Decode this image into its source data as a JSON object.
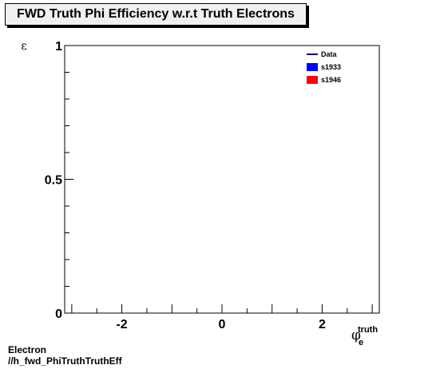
{
  "chart_data": {
    "type": "line",
    "title": "FWD Truth Phi Efficiency w.r.t Truth Electrons",
    "ylabel": "ε",
    "xlabel_symbol": "φ",
    "xlabel_sub": "e",
    "xlabel_sup": "truth",
    "xlim": [
      -3.1416,
      3.1416
    ],
    "ylim": [
      0,
      1
    ],
    "x_ticks": [
      -2,
      0,
      2
    ],
    "x_tick_labels": [
      "-2",
      "0",
      "2"
    ],
    "y_ticks": [
      0,
      0.5,
      1
    ],
    "y_tick_labels": [
      "0",
      "0.5",
      "1"
    ],
    "grid": false,
    "legend_position": "top-right",
    "series": [
      {
        "name": "Data",
        "color": "#00008b",
        "style": "line",
        "x": [],
        "y": []
      },
      {
        "name": "s1933",
        "color": "#0000ff",
        "style": "box",
        "x": [],
        "y": []
      },
      {
        "name": "s1946",
        "color": "#ff0000",
        "style": "box",
        "x": [],
        "y": []
      }
    ]
  },
  "footer": {
    "line1": "Electron",
    "line2": "//h_fwd_PhiTruthTruthEff"
  }
}
